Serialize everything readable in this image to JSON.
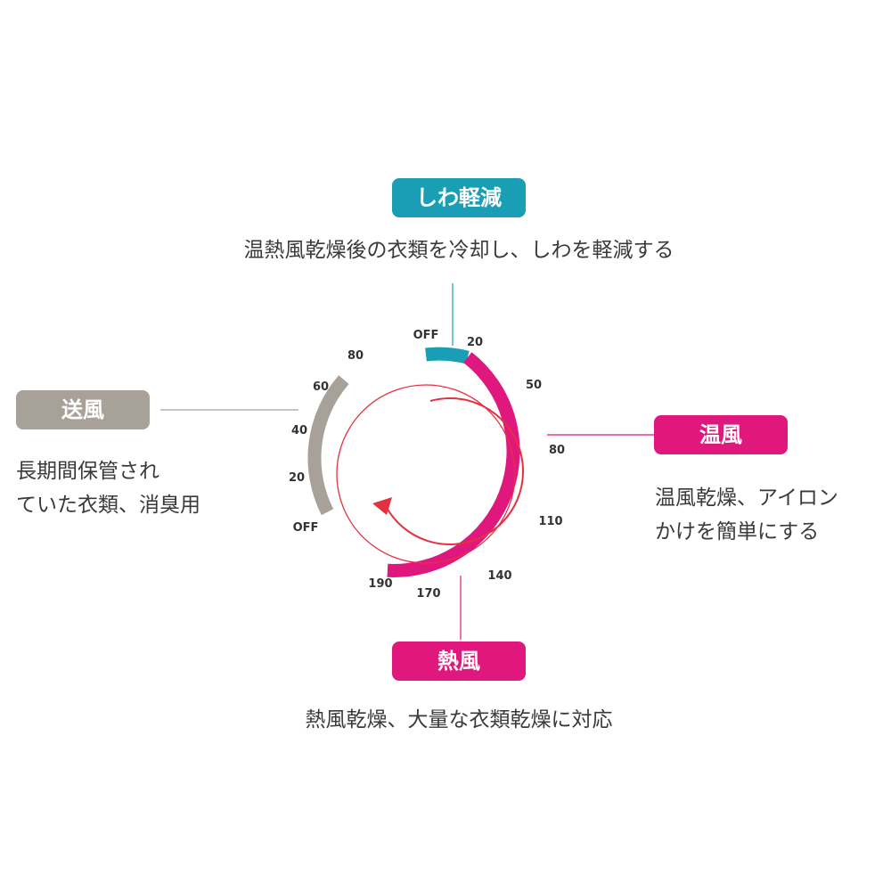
{
  "colors": {
    "teal": "#1a9eb5",
    "magenta": "#e0177c",
    "gray": "#a8a19a",
    "red": "#e5313f"
  },
  "modes": {
    "wrinkle": {
      "label": "しわ軽減",
      "desc": "温熱風乾燥後の衣類を冷却し、しわを軽減する"
    },
    "warm": {
      "label": "温風",
      "desc_lines": [
        "温風乾燥、アイロン",
        "かけを簡単にする"
      ]
    },
    "hot": {
      "label": "熱風",
      "desc": "熱風乾燥、大量な衣類乾燥に対応"
    },
    "blow": {
      "label": "送風",
      "desc_lines": [
        "長期間保管され",
        "ていた衣類、消臭用"
      ]
    }
  },
  "dial": {
    "heat_scale": [
      "OFF",
      "20",
      "50",
      "80",
      "110",
      "140",
      "170",
      "190"
    ],
    "blow_scale": [
      "80",
      "60",
      "40",
      "20",
      "OFF"
    ]
  }
}
